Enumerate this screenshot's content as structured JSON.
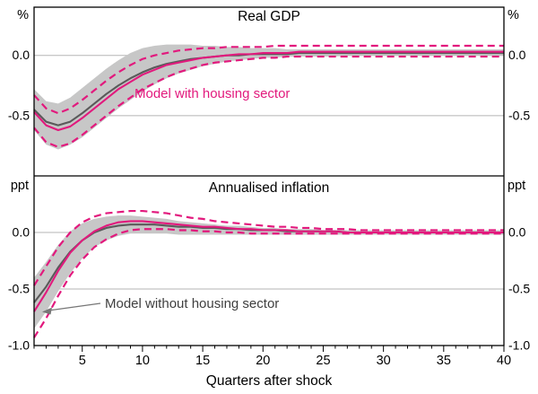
{
  "figure": {
    "x_axis": {
      "title": "Quarters after shock",
      "min": 1,
      "max": 40,
      "major_ticks": [
        5,
        10,
        15,
        20,
        25,
        30,
        35,
        40
      ],
      "minor_tick_step": 1,
      "quarters": [
        1,
        2,
        3,
        4,
        5,
        6,
        7,
        8,
        9,
        10,
        11,
        12,
        13,
        14,
        15,
        16,
        17,
        18,
        19,
        20,
        21,
        22,
        23,
        24,
        25,
        26,
        27,
        28,
        29,
        30,
        31,
        32,
        33,
        34,
        35,
        36,
        37,
        38,
        39,
        40
      ]
    },
    "annotations": {
      "with_housing": {
        "text": "Model with housing sector",
        "color": "#e2197d"
      },
      "without_housing": {
        "text": "Model without housing sector",
        "color": "#3f3f3f"
      }
    }
  },
  "colors": {
    "pink": "#e2197d",
    "grey_line": "#5a5a5a",
    "band": "#c7c7c7",
    "grid": "#b5b5b5",
    "frame": "#000000"
  },
  "chart_data": [
    {
      "type": "line",
      "title": "Real GDP",
      "unit": "%",
      "ylim": [
        -1.0,
        0.4
      ],
      "yticks": [
        0.0,
        -0.5
      ],
      "ytick_labels": [
        "0.0",
        "-0.5"
      ],
      "legend_position": "none",
      "grid": true,
      "series": [
        {
          "name": "confidence band (model without housing sector)",
          "kind": "band",
          "color": "#c7c7c7",
          "upper": [
            -0.28,
            -0.38,
            -0.4,
            -0.35,
            -0.27,
            -0.19,
            -0.11,
            -0.04,
            0.02,
            0.06,
            0.08,
            0.09,
            0.09,
            0.09,
            0.08,
            0.08,
            0.07,
            0.07,
            0.06,
            0.06,
            0.06,
            0.05,
            0.05,
            0.05,
            0.05,
            0.05,
            0.05,
            0.05,
            0.05,
            0.05,
            0.05,
            0.05,
            0.05,
            0.05,
            0.05,
            0.05,
            0.05,
            0.05,
            0.05,
            0.05
          ],
          "lower": [
            -0.62,
            -0.74,
            -0.78,
            -0.74,
            -0.68,
            -0.6,
            -0.52,
            -0.44,
            -0.37,
            -0.3,
            -0.24,
            -0.19,
            -0.15,
            -0.12,
            -0.09,
            -0.07,
            -0.05,
            -0.04,
            -0.03,
            -0.02,
            -0.02,
            -0.01,
            -0.01,
            -0.01,
            -0.01,
            -0.01,
            0,
            0,
            0,
            0,
            0,
            0,
            0,
            0,
            0,
            0,
            0,
            0,
            0,
            0
          ]
        },
        {
          "name": "Model without housing sector",
          "kind": "line",
          "style": "solid",
          "color": "#5a5a5a",
          "values": [
            -0.45,
            -0.55,
            -0.58,
            -0.55,
            -0.48,
            -0.4,
            -0.32,
            -0.25,
            -0.19,
            -0.14,
            -0.1,
            -0.07,
            -0.05,
            -0.03,
            -0.02,
            -0.01,
            0,
            0,
            0.01,
            0.01,
            0.01,
            0.01,
            0.02,
            0.02,
            0.02,
            0.02,
            0.02,
            0.02,
            0.02,
            0.02,
            0.02,
            0.02,
            0.02,
            0.02,
            0.02,
            0.02,
            0.02,
            0.02,
            0.02,
            0.02
          ]
        },
        {
          "name": "Model with housing sector",
          "kind": "line",
          "style": "solid",
          "color": "#e2197d",
          "values": [
            -0.47,
            -0.58,
            -0.62,
            -0.59,
            -0.52,
            -0.44,
            -0.36,
            -0.28,
            -0.22,
            -0.16,
            -0.12,
            -0.08,
            -0.06,
            -0.04,
            -0.02,
            -0.01,
            0,
            0.01,
            0.01,
            0.02,
            0.02,
            0.02,
            0.03,
            0.03,
            0.03,
            0.03,
            0.03,
            0.03,
            0.03,
            0.03,
            0.03,
            0.03,
            0.03,
            0.03,
            0.03,
            0.03,
            0.03,
            0.03,
            0.03,
            0.03
          ]
        },
        {
          "name": "Model with housing sector upper band",
          "kind": "line",
          "style": "dashed",
          "color": "#e2197d",
          "values": [
            -0.33,
            -0.44,
            -0.48,
            -0.44,
            -0.37,
            -0.29,
            -0.21,
            -0.14,
            -0.08,
            -0.03,
            0,
            0.02,
            0.04,
            0.05,
            0.06,
            0.06,
            0.07,
            0.07,
            0.07,
            0.07,
            0.08,
            0.08,
            0.08,
            0.08,
            0.08,
            0.08,
            0.08,
            0.08,
            0.08,
            0.08,
            0.08,
            0.08,
            0.08,
            0.08,
            0.08,
            0.08,
            0.08,
            0.08,
            0.08,
            0.08
          ]
        },
        {
          "name": "Model with housing sector lower band",
          "kind": "line",
          "style": "dashed",
          "color": "#e2197d",
          "values": [
            -0.6,
            -0.72,
            -0.76,
            -0.73,
            -0.66,
            -0.58,
            -0.5,
            -0.42,
            -0.35,
            -0.28,
            -0.23,
            -0.18,
            -0.14,
            -0.11,
            -0.08,
            -0.06,
            -0.05,
            -0.04,
            -0.03,
            -0.02,
            -0.02,
            -0.01,
            -0.01,
            -0.01,
            -0.01,
            -0.01,
            -0.01,
            -0.01,
            -0.01,
            -0.01,
            -0.01,
            -0.01,
            -0.01,
            -0.01,
            -0.01,
            -0.01,
            -0.01,
            -0.01,
            -0.01,
            -0.01
          ]
        }
      ]
    },
    {
      "type": "line",
      "title": "Annualised inflation",
      "unit": "ppt",
      "ylim": [
        -1.0,
        0.5
      ],
      "yticks": [
        0.0,
        -0.5,
        -1.0
      ],
      "ytick_labels": [
        "0.0",
        "-0.5",
        "-1.0"
      ],
      "legend_position": "none",
      "grid": true,
      "series": [
        {
          "name": "confidence band (model without housing sector)",
          "kind": "band",
          "color": "#c7c7c7",
          "upper": [
            -0.4,
            -0.26,
            -0.11,
            0.01,
            0.08,
            0.12,
            0.14,
            0.15,
            0.15,
            0.14,
            0.13,
            0.12,
            0.1,
            0.09,
            0.08,
            0.07,
            0.06,
            0.06,
            0.05,
            0.04,
            0.04,
            0.03,
            0.03,
            0.03,
            0.02,
            0.02,
            0.02,
            0.02,
            0.02,
            0.02,
            0.02,
            0.02,
            0.02,
            0.02,
            0.02,
            0.02,
            0.02,
            0.02,
            0.02,
            0.02
          ],
          "lower": [
            -0.85,
            -0.7,
            -0.52,
            -0.36,
            -0.23,
            -0.13,
            -0.07,
            -0.03,
            -0.01,
            -0.01,
            -0.01,
            -0.01,
            -0.02,
            -0.02,
            -0.02,
            -0.02,
            -0.02,
            -0.02,
            -0.02,
            -0.02,
            -0.02,
            -0.02,
            -0.02,
            -0.02,
            -0.02,
            -0.02,
            -0.02,
            -0.02,
            -0.02,
            -0.02,
            -0.02,
            -0.02,
            -0.02,
            -0.02,
            -0.02,
            -0.02,
            -0.02,
            -0.02,
            -0.02,
            -0.02
          ]
        },
        {
          "name": "Model without housing sector",
          "kind": "line",
          "style": "solid",
          "color": "#5a5a5a",
          "values": [
            -0.62,
            -0.48,
            -0.31,
            -0.17,
            -0.07,
            0,
            0.04,
            0.06,
            0.07,
            0.07,
            0.07,
            0.06,
            0.05,
            0.05,
            0.04,
            0.04,
            0.03,
            0.03,
            0.02,
            0.02,
            0.02,
            0.01,
            0.01,
            0.01,
            0.01,
            0.01,
            0,
            0,
            0,
            0,
            0,
            0,
            0,
            0,
            0,
            0,
            0,
            0,
            0,
            0
          ]
        },
        {
          "name": "Model with housing sector",
          "kind": "line",
          "style": "solid",
          "color": "#e2197d",
          "values": [
            -0.7,
            -0.53,
            -0.34,
            -0.18,
            -0.07,
            0.01,
            0.06,
            0.09,
            0.1,
            0.1,
            0.09,
            0.08,
            0.07,
            0.06,
            0.05,
            0.05,
            0.04,
            0.03,
            0.03,
            0.02,
            0.02,
            0.02,
            0.01,
            0.01,
            0.01,
            0.01,
            0,
            0,
            0,
            0,
            0,
            0,
            0,
            0,
            0,
            0,
            0,
            0,
            0,
            0
          ]
        },
        {
          "name": "Model with housing sector upper band",
          "kind": "line",
          "style": "dashed",
          "color": "#e2197d",
          "values": [
            -0.47,
            -0.3,
            -0.13,
            0,
            0.09,
            0.14,
            0.17,
            0.18,
            0.19,
            0.19,
            0.18,
            0.17,
            0.15,
            0.13,
            0.12,
            0.1,
            0.09,
            0.08,
            0.07,
            0.06,
            0.05,
            0.05,
            0.04,
            0.04,
            0.03,
            0.03,
            0.03,
            0.02,
            0.02,
            0.02,
            0.02,
            0.02,
            0.02,
            0.02,
            0.02,
            0.02,
            0.02,
            0.02,
            0.02,
            0.02
          ]
        },
        {
          "name": "Model with housing sector lower band",
          "kind": "line",
          "style": "dashed",
          "color": "#e2197d",
          "values": [
            -0.93,
            -0.76,
            -0.56,
            -0.38,
            -0.24,
            -0.13,
            -0.06,
            -0.01,
            0.02,
            0.03,
            0.03,
            0.03,
            0.02,
            0.02,
            0.01,
            0.01,
            0,
            0,
            -0.01,
            -0.01,
            -0.01,
            -0.01,
            -0.01,
            -0.01,
            -0.01,
            -0.01,
            -0.01,
            -0.01,
            -0.01,
            -0.01,
            -0.01,
            -0.01,
            -0.01,
            -0.01,
            -0.01,
            -0.01,
            -0.01,
            -0.01,
            -0.01,
            -0.01
          ]
        }
      ]
    }
  ]
}
